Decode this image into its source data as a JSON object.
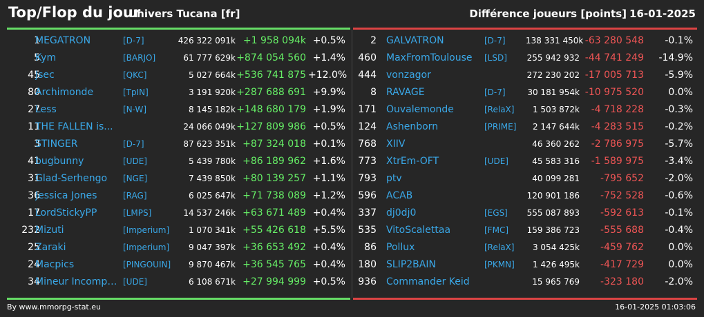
{
  "header": {
    "title": "Top/Flop du jour",
    "universe": "Univers Tucana [fr]",
    "metric": "Différence joueurs [points]",
    "date": "16-01-2025"
  },
  "top": [
    {
      "rank": "1",
      "name": "MEGATRON",
      "alliance": "[D-7]",
      "total": "426 322 091k",
      "diff": "+1 958 094k",
      "pct": "+0.5%"
    },
    {
      "rank": "5",
      "name": "Kym",
      "alliance": "[BARJO]",
      "total": "61 777 629k",
      "diff": "+874 054 560",
      "pct": "+1.4%"
    },
    {
      "rank": "45",
      "name": "Jsec",
      "alliance": "[QKC]",
      "total": "5 027 664k",
      "diff": "+536 741 875",
      "pct": "+12.0%"
    },
    {
      "rank": "80",
      "name": "Archimonde",
      "alliance": "[TpIN]",
      "total": "3 191 920k",
      "diff": "+287 688 691",
      "pct": "+9.9%"
    },
    {
      "rank": "27",
      "name": "Less",
      "alliance": "[N-W]",
      "total": "8 145 182k",
      "diff": "+148 680 179",
      "pct": "+1.9%"
    },
    {
      "rank": "11",
      "name": "THE FALLEN is...",
      "alliance": "",
      "total": "24 066 049k",
      "diff": "+127 809 986",
      "pct": "+0.5%"
    },
    {
      "rank": "3",
      "name": "STINGER",
      "alliance": "[D-7]",
      "total": "87 623 351k",
      "diff": "+87 324 018",
      "pct": "+0.1%"
    },
    {
      "rank": "41",
      "name": "bugbunny",
      "alliance": "[UDE]",
      "total": "5 439 780k",
      "diff": "+86 189 962",
      "pct": "+1.6%"
    },
    {
      "rank": "31",
      "name": "Glad-Serhengo",
      "alliance": "[NGE]",
      "total": "7 439 850k",
      "diff": "+80 139 257",
      "pct": "+1.1%"
    },
    {
      "rank": "36",
      "name": "Jessica Jones",
      "alliance": "[RAG]",
      "total": "6 025 647k",
      "diff": "+71 738 089",
      "pct": "+1.2%"
    },
    {
      "rank": "17",
      "name": "LordStickyPP",
      "alliance": "[LMPS]",
      "total": "14 537 246k",
      "diff": "+63 671 489",
      "pct": "+0.4%"
    },
    {
      "rank": "232",
      "name": "Mizuti",
      "alliance": "[Imperium]",
      "total": "1 070 341k",
      "diff": "+55 426 618",
      "pct": "+5.5%"
    },
    {
      "rank": "25",
      "name": "Zaraki",
      "alliance": "[Imperium]",
      "total": "9 047 397k",
      "diff": "+36 653 492",
      "pct": "+0.4%"
    },
    {
      "rank": "24",
      "name": "Macpics",
      "alliance": "[PINGOUIN]",
      "total": "9 870 467k",
      "diff": "+36 545 765",
      "pct": "+0.4%"
    },
    {
      "rank": "34",
      "name": "Mineur Incompe...",
      "alliance": "[UDE]",
      "total": "6 108 671k",
      "diff": "+27 994 999",
      "pct": "+0.5%"
    }
  ],
  "flop": [
    {
      "rank": "2",
      "name": "GALVATRON",
      "alliance": "[D-7]",
      "total": "138 331 450k",
      "diff": "-63 280 548",
      "pct": "-0.1%"
    },
    {
      "rank": "460",
      "name": "MaxFromToulouse",
      "alliance": "[LSD]",
      "total": "255 942 932",
      "diff": "-44 741 249",
      "pct": "-14.9%"
    },
    {
      "rank": "444",
      "name": "vonzagor",
      "alliance": "",
      "total": "272 230 202",
      "diff": "-17 005 713",
      "pct": "-5.9%"
    },
    {
      "rank": "8",
      "name": "RAVAGE",
      "alliance": "[D-7]",
      "total": "30 181 954k",
      "diff": "-10 975 520",
      "pct": "0.0%"
    },
    {
      "rank": "171",
      "name": "Ouvalemonde",
      "alliance": "[RelaX]",
      "total": "1 503 872k",
      "diff": "-4 718 228",
      "pct": "-0.3%"
    },
    {
      "rank": "124",
      "name": "Ashenborn",
      "alliance": "[PRIME]",
      "total": "2 147 644k",
      "diff": "-4 283 515",
      "pct": "-0.2%"
    },
    {
      "rank": "768",
      "name": "XIIV",
      "alliance": "",
      "total": "46 360 262",
      "diff": "-2 786 975",
      "pct": "-5.7%"
    },
    {
      "rank": "773",
      "name": "XtrEm-OFT",
      "alliance": "[UDE]",
      "total": "45 583 316",
      "diff": "-1 589 975",
      "pct": "-3.4%"
    },
    {
      "rank": "793",
      "name": "ptv",
      "alliance": "",
      "total": "40 099 281",
      "diff": "-795 652",
      "pct": "-2.0%"
    },
    {
      "rank": "596",
      "name": "ACAB",
      "alliance": "",
      "total": "120 901 186",
      "diff": "-752 528",
      "pct": "-0.6%"
    },
    {
      "rank": "337",
      "name": "dj0dj0",
      "alliance": "[EGS]",
      "total": "555 087 893",
      "diff": "-592 613",
      "pct": "-0.1%"
    },
    {
      "rank": "535",
      "name": "VitoScalettaa",
      "alliance": "[FMC]",
      "total": "159 386 723",
      "diff": "-555 688",
      "pct": "-0.4%"
    },
    {
      "rank": "86",
      "name": "Pollux",
      "alliance": "[RelaX]",
      "total": "3 054 425k",
      "diff": "-459 762",
      "pct": "0.0%"
    },
    {
      "rank": "180",
      "name": "SLIP2BAIN",
      "alliance": "[PKMN]",
      "total": "1 426 495k",
      "diff": "-417 729",
      "pct": "0.0%"
    },
    {
      "rank": "936",
      "name": "Commander Keid",
      "alliance": "",
      "total": "15 965 769",
      "diff": "-323 180",
      "pct": "-2.0%"
    }
  ],
  "footer": {
    "source": "By www.mmorpg-stat.eu",
    "timestamp": "16-01-2025 01:03:06"
  },
  "colors": {
    "background": "#262626",
    "gain": "#66ee66",
    "loss": "#ee5555",
    "link": "#3aa8e8"
  }
}
